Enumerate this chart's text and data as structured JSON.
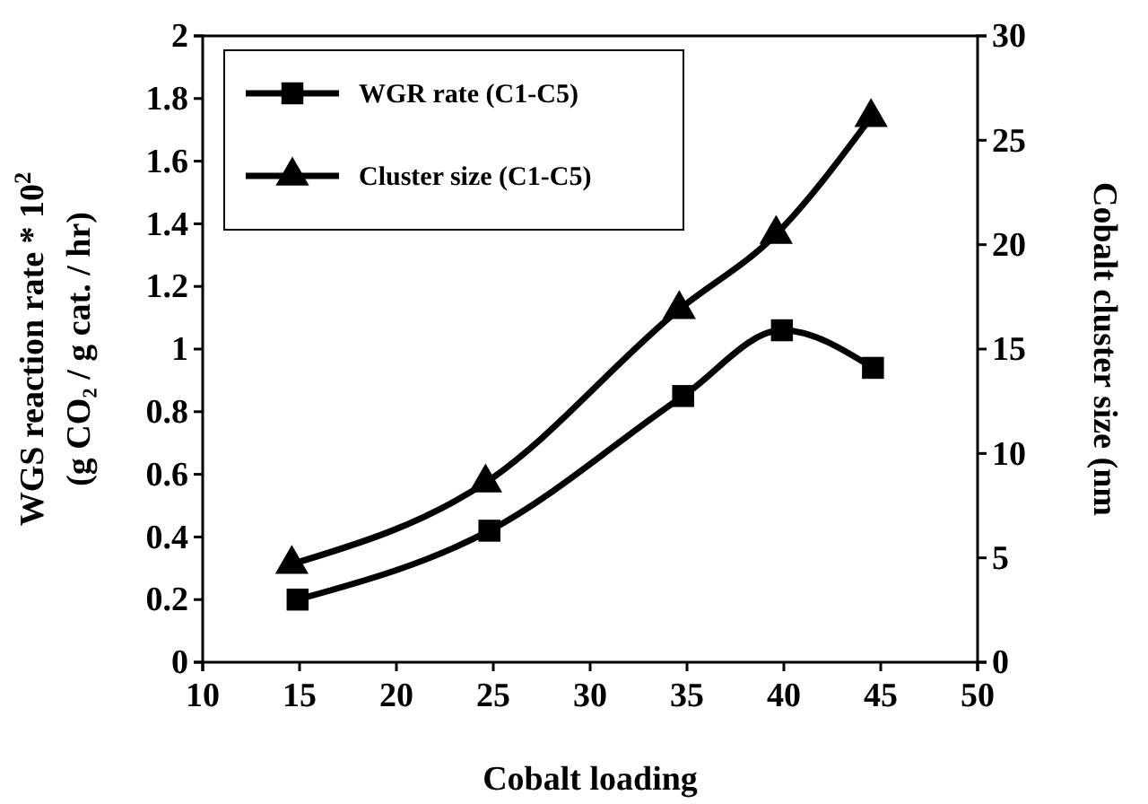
{
  "chart_data": {
    "type": "line",
    "xlabel": "Cobalt loading",
    "ylabel": "WGS reaction rate * 10$^{2}$\n(g CO₂ / g cat. / hr)",
    "y2label": "Cobalt cluster size (nm",
    "xlim": [
      10,
      50
    ],
    "xticks": [
      10,
      15,
      20,
      25,
      30,
      35,
      40,
      45,
      50
    ],
    "ylim": [
      0,
      2
    ],
    "yticks": [
      0,
      0.2,
      0.4,
      0.6,
      0.8,
      1,
      1.2,
      1.4,
      1.6,
      1.8,
      2
    ],
    "y2lim": [
      0,
      30
    ],
    "y2ticks": [
      0,
      5,
      10,
      15,
      20,
      25,
      30
    ],
    "legend": "top left",
    "grid": false,
    "line_style": "solid",
    "series": [
      {
        "name": "WGR rate (C1-C5)",
        "color": "#000000",
        "marker": "square",
        "x": [
          14.9,
          24.8,
          34.8,
          39.9,
          44.6
        ],
        "values": [
          0.2,
          0.42,
          0.85,
          1.06,
          0.94
        ]
      },
      {
        "name": "Cluster size (C1-C5)",
        "color": "#000000",
        "marker": "triangle",
        "axis": "y2",
        "x": [
          14.6,
          24.6,
          34.6,
          39.6,
          44.5
        ],
        "values": [
          4.7,
          8.6,
          16.9,
          20.5,
          26.1
        ]
      }
    ]
  }
}
